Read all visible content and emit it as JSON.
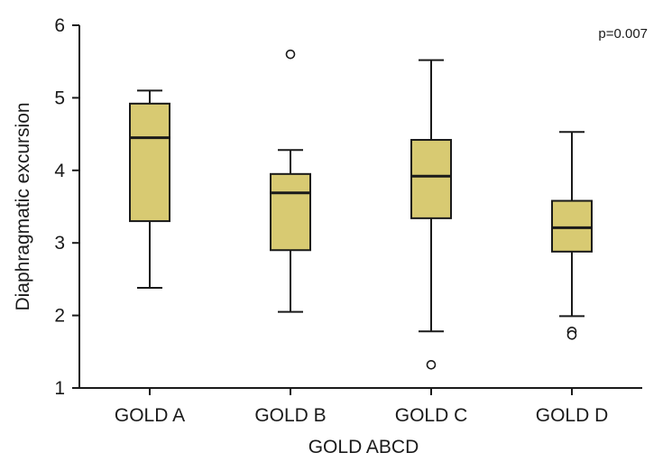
{
  "chart_data": {
    "type": "boxplot",
    "title": "",
    "xlabel": "GOLD ABCD",
    "ylabel": "Diaphragmatic excursion",
    "ylim": [
      1,
      6
    ],
    "yticks": [
      "1",
      "2",
      "3",
      "4",
      "5",
      "6"
    ],
    "categories": [
      "GOLD A",
      "GOLD B",
      "GOLD C",
      "GOLD D"
    ],
    "boxes": [
      {
        "name": "GOLD A",
        "min": 2.38,
        "q1": 3.3,
        "median": 4.45,
        "q3": 4.92,
        "max": 5.1,
        "outliers": []
      },
      {
        "name": "GOLD B",
        "min": 2.05,
        "q1": 2.9,
        "median": 3.69,
        "q3": 3.95,
        "max": 4.28,
        "outliers": [
          5.6
        ]
      },
      {
        "name": "GOLD C",
        "min": 1.78,
        "q1": 3.34,
        "median": 3.92,
        "q3": 4.42,
        "max": 5.52,
        "outliers": [
          1.32
        ]
      },
      {
        "name": "GOLD D",
        "min": 1.99,
        "q1": 2.88,
        "median": 3.21,
        "q3": 3.58,
        "max": 4.53,
        "outliers": [
          1.78,
          1.73
        ]
      }
    ],
    "annotation": "p=0.007",
    "grid": false,
    "colors": {
      "box_fill": "#d8ca72",
      "stroke": "#1a1a1a"
    }
  }
}
